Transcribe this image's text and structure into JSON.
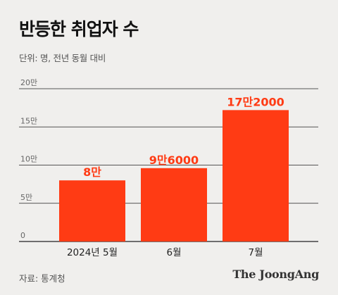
{
  "header": {
    "title": "반등한 취업자 수",
    "subtitle": "단위: 명, 전년 동월 대비"
  },
  "footer": {
    "source": "자료: 통계청",
    "brand": "The JoongAng"
  },
  "colors": {
    "bar": "#ff3b14",
    "bar_label": "#ff3b14",
    "grid": "#222222",
    "background": "#f0efed"
  },
  "chart_data": {
    "type": "bar",
    "title": "반등한 취업자 수",
    "categories": [
      "2024년 5월",
      "6월",
      "7월"
    ],
    "values": [
      80000,
      96000,
      172000
    ],
    "data_labels": [
      "8만",
      "9만6000",
      "17만2000"
    ],
    "ylim": [
      0,
      200000
    ],
    "yticks": [
      0,
      50000,
      100000,
      150000,
      200000
    ],
    "ytick_labels": [
      "0",
      "5만",
      "10만",
      "15만",
      "20만"
    ],
    "grid": true
  }
}
